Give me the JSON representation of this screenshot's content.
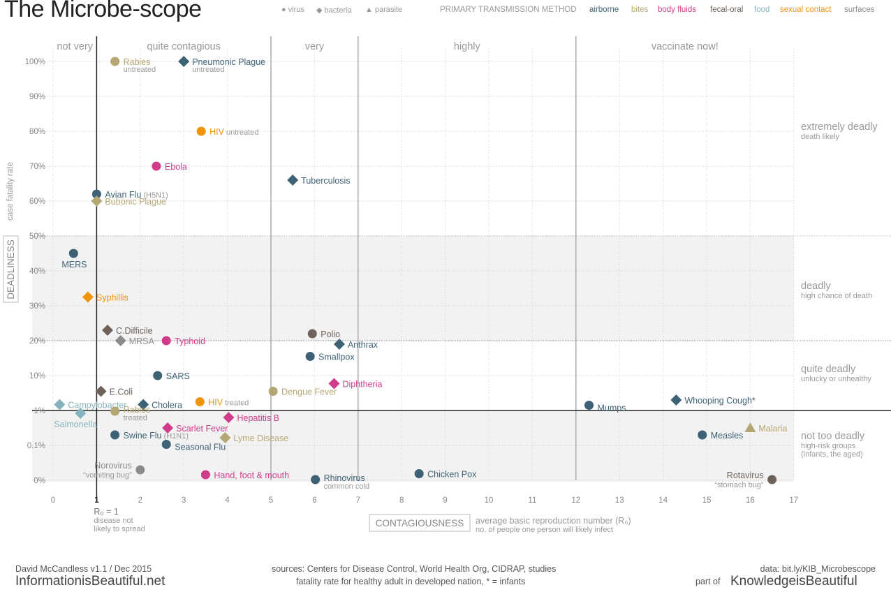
{
  "header": {
    "title": "The Microbe-scope",
    "shape_legend": [
      {
        "shape": "circle",
        "label": "virus"
      },
      {
        "shape": "diamond",
        "label": "bacteria"
      },
      {
        "shape": "triangle",
        "label": "parasite"
      }
    ],
    "transmission_title": "PRIMARY TRANSMISSION METHOD",
    "transmission": [
      {
        "key": "airborne",
        "label": "airborne",
        "color": "#3d6275"
      },
      {
        "key": "bites",
        "label": "bites",
        "color": "#b5a774"
      },
      {
        "key": "body",
        "label": "body fluids",
        "color": "#d13c8a"
      },
      {
        "key": "fecal",
        "label": "fecal-oral",
        "color": "#6e625b"
      },
      {
        "key": "food",
        "label": "food",
        "color": "#86b3bd"
      },
      {
        "key": "sexual",
        "label": "sexual contact",
        "color": "#f0940e"
      },
      {
        "key": "surfaces",
        "label": "surfaces",
        "color": "#8b8b8b"
      }
    ]
  },
  "chart_data": {
    "type": "scatter",
    "xlim": [
      0,
      17
    ],
    "x_ticks": [
      0,
      1,
      2,
      3,
      4,
      5,
      6,
      7,
      8,
      9,
      10,
      11,
      12,
      13,
      14,
      15,
      16,
      17
    ],
    "y_ticks": [
      "0%",
      "0.1%",
      "1%",
      "10%",
      "20%",
      "30%",
      "40%",
      "50%",
      "60%",
      "70%",
      "80%",
      "90%",
      "100%"
    ],
    "xlabel_box": "CONTAGIOUSNESS",
    "xlabel": "average basic reproduction number (R₀)",
    "xlabel_sub": "no. of people one person will likely infect",
    "ylabel_box": "DEADLINESS",
    "ylabel": "case fatality rate",
    "r0_note": {
      "label": "R₀ = 1",
      "line1": "disease not",
      "line2": "likely to spread"
    },
    "contagion_bands": [
      {
        "label": "not very",
        "from": 0,
        "to": 1
      },
      {
        "label": "quite contagious",
        "from": 1,
        "to": 5
      },
      {
        "label": "very",
        "from": 5,
        "to": 7
      },
      {
        "label": "highly",
        "from": 7,
        "to": 12
      },
      {
        "label": "vaccinate now!",
        "from": 12,
        "to": 17
      }
    ],
    "deadly_zones": [
      {
        "label": "extremely deadly",
        "sub": "death likely",
        "sub2": ""
      },
      {
        "label": "deadly",
        "sub": "high chance of death",
        "sub2": ""
      },
      {
        "label": "quite deadly",
        "sub": "unlucky or unhealthy",
        "sub2": ""
      },
      {
        "label": "not too deadly",
        "sub": "high-risk groups",
        "sub2": "(infants, the aged)"
      }
    ],
    "points": [
      {
        "name": "Rabies",
        "sub": "untreated",
        "x": 1.42,
        "y": 12,
        "shape": "circle",
        "trans": "bites",
        "anchor": "right"
      },
      {
        "name": "Pneumonic Plague",
        "sub": "untreated",
        "x": 3.0,
        "y": 12,
        "shape": "diamond",
        "trans": "airborne",
        "anchor": "right"
      },
      {
        "name": "HIV",
        "sub": "untreated",
        "x": 3.4,
        "y": 10,
        "shape": "circle",
        "trans": "sexual",
        "anchor": "right",
        "sub_inline": true
      },
      {
        "name": "Ebola",
        "sub": "",
        "x": 2.37,
        "y": 9,
        "shape": "circle",
        "trans": "body",
        "anchor": "right"
      },
      {
        "name": "Tuberculosis",
        "sub": "",
        "x": 5.5,
        "y": 8.6,
        "shape": "diamond",
        "trans": "airborne",
        "anchor": "right"
      },
      {
        "name": "Avian Flu",
        "sub": "(H5N1)",
        "x": 1.0,
        "y": 8.2,
        "shape": "circle",
        "trans": "airborne",
        "anchor": "right",
        "sub_inline": true
      },
      {
        "name": "Bubonic Plague",
        "sub": "",
        "x": 1.0,
        "y": 8.0,
        "shape": "diamond",
        "trans": "bites",
        "anchor": "right"
      },
      {
        "name": "MERS",
        "sub": "",
        "x": 0.47,
        "y": 6.5,
        "shape": "circle",
        "trans": "airborne",
        "anchor": "below"
      },
      {
        "name": "Syphillis",
        "sub": "",
        "x": 0.8,
        "y": 5.25,
        "shape": "diamond",
        "trans": "sexual",
        "anchor": "right"
      },
      {
        "name": "C.Difficile",
        "sub": "",
        "x": 1.25,
        "y": 4.3,
        "shape": "diamond",
        "trans": "fecal",
        "anchor": "right"
      },
      {
        "name": "MRSA",
        "sub": "",
        "x": 1.55,
        "y": 4.0,
        "shape": "diamond",
        "trans": "surfaces",
        "anchor": "right"
      },
      {
        "name": "Typhoid",
        "sub": "",
        "x": 2.6,
        "y": 4.0,
        "shape": "circle",
        "trans": "body",
        "anchor": "right"
      },
      {
        "name": "Polio",
        "sub": "",
        "x": 5.95,
        "y": 4.2,
        "shape": "circle",
        "trans": "fecal",
        "anchor": "right"
      },
      {
        "name": "Anthrax",
        "sub": "",
        "x": 6.57,
        "y": 3.9,
        "shape": "diamond",
        "trans": "airborne",
        "anchor": "right"
      },
      {
        "name": "Smallpox",
        "sub": "",
        "x": 5.9,
        "y": 3.55,
        "shape": "circle",
        "trans": "airborne",
        "anchor": "right"
      },
      {
        "name": "SARS",
        "sub": "",
        "x": 2.4,
        "y": 3.0,
        "shape": "circle",
        "trans": "airborne",
        "anchor": "right"
      },
      {
        "name": "Diphtheria",
        "sub": "",
        "x": 6.45,
        "y": 2.77,
        "shape": "diamond",
        "trans": "body",
        "anchor": "right"
      },
      {
        "name": "E.Coli",
        "sub": "",
        "x": 1.1,
        "y": 2.55,
        "shape": "diamond",
        "trans": "fecal",
        "anchor": "right"
      },
      {
        "name": "Dengue Fever",
        "sub": "",
        "x": 5.05,
        "y": 2.55,
        "shape": "circle",
        "trans": "bites",
        "anchor": "right"
      },
      {
        "name": "Campylobacter",
        "sub": "",
        "x": 0.15,
        "y": 2.17,
        "shape": "diamond",
        "trans": "food",
        "anchor": "right"
      },
      {
        "name": "Cholera",
        "sub": "",
        "x": 2.07,
        "y": 2.17,
        "shape": "diamond",
        "trans": "airborne",
        "anchor": "right"
      },
      {
        "name": "HIV",
        "sub": "treated",
        "x": 3.37,
        "y": 2.25,
        "shape": "circle",
        "trans": "sexual",
        "anchor": "right",
        "sub_inline": true
      },
      {
        "name": "Mumps",
        "sub": "",
        "x": 12.3,
        "y": 2.15,
        "shape": "circle",
        "trans": "airborne",
        "anchor": "right_low"
      },
      {
        "name": "Whooping Cough*",
        "sub": "",
        "x": 14.3,
        "y": 2.3,
        "shape": "diamond",
        "trans": "airborne",
        "anchor": "right"
      },
      {
        "name": "Salmonella",
        "sub": "",
        "x": 0.63,
        "y": 1.92,
        "shape": "diamond",
        "trans": "food",
        "anchor": "below_left"
      },
      {
        "name": "Rabies",
        "sub": "treated",
        "x": 1.42,
        "y": 1.98,
        "shape": "circle",
        "trans": "bites",
        "anchor": "right_stack"
      },
      {
        "name": "Hepatitis B",
        "sub": "",
        "x": 4.03,
        "y": 1.8,
        "shape": "diamond",
        "trans": "body",
        "anchor": "right"
      },
      {
        "name": "Scarlet Fever",
        "sub": "",
        "x": 2.63,
        "y": 1.5,
        "shape": "diamond",
        "trans": "body",
        "anchor": "right"
      },
      {
        "name": "Malaria",
        "sub": "",
        "x": 16.0,
        "y": 1.5,
        "shape": "triangle",
        "trans": "bites",
        "anchor": "right"
      },
      {
        "name": "Swine Flu",
        "sub": "(H1N1)",
        "x": 1.42,
        "y": 1.3,
        "shape": "circle",
        "trans": "airborne",
        "anchor": "right",
        "sub_inline": true
      },
      {
        "name": "Lyme Disease",
        "sub": "",
        "x": 3.95,
        "y": 1.22,
        "shape": "diamond",
        "trans": "bites",
        "anchor": "right"
      },
      {
        "name": "Measles",
        "sub": "",
        "x": 14.9,
        "y": 1.3,
        "shape": "circle",
        "trans": "airborne",
        "anchor": "right"
      },
      {
        "name": "Seasonal Flu",
        "sub": "",
        "x": 2.6,
        "y": 1.03,
        "shape": "circle",
        "trans": "airborne",
        "anchor": "right_low"
      },
      {
        "name": "Norovirus",
        "sub": "“vomiting bug”",
        "x": 2.0,
        "y": 0.3,
        "shape": "circle",
        "trans": "surfaces",
        "anchor": "left_stack"
      },
      {
        "name": "Hand, foot & mouth",
        "sub": "",
        "x": 3.5,
        "y": 0.16,
        "shape": "circle",
        "trans": "body",
        "anchor": "right"
      },
      {
        "name": "Chicken Pox",
        "sub": "",
        "x": 8.4,
        "y": 0.19,
        "shape": "circle",
        "trans": "airborne",
        "anchor": "right"
      },
      {
        "name": "Rhinovirus",
        "sub": "common cold",
        "x": 6.02,
        "y": 0.02,
        "shape": "circle",
        "trans": "airborne",
        "anchor": "right_stack"
      },
      {
        "name": "Rotavirus",
        "sub": "“stomach bug”",
        "x": 16.5,
        "y": 0.02,
        "shape": "circle",
        "trans": "fecal",
        "anchor": "left_stack"
      }
    ]
  },
  "footer": {
    "author": "David McCandless v1.1 / Dec 2015",
    "brand": "InformationisBeautiful.net",
    "sources_line1": "sources: Centers for Disease Control, World Health Org, CIDRAP, studies",
    "sources_line2": "fatality rate for healthy adult in developed nation, * = infants",
    "data_link": "data: bit.ly/KIB_Microbescope",
    "part_of": "part of",
    "kib": "KnowledgeisBeautiful"
  }
}
